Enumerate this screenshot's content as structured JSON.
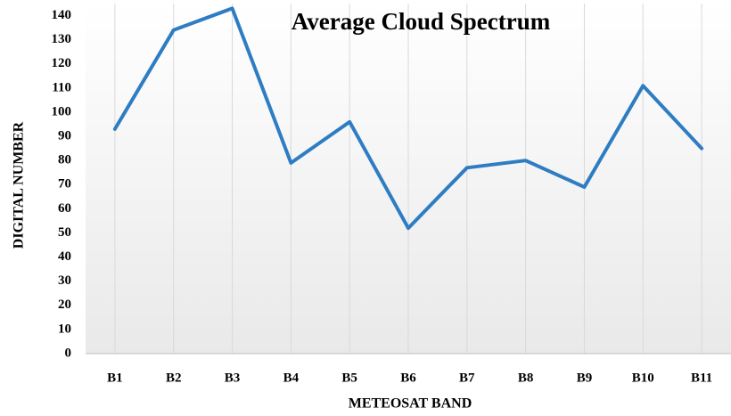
{
  "chart_data": {
    "type": "line",
    "title": "Average Cloud Spectrum",
    "x_label": "METEOSAT BAND",
    "y_label": "DIGITAL NUMBER",
    "categories": [
      "B1",
      "B2",
      "B3",
      "B4",
      "B5",
      "B6",
      "B7",
      "B8",
      "B9",
      "B10",
      "B11"
    ],
    "series": [
      {
        "name": "Average Cloud Spectrum",
        "color": "#2e7dc3",
        "values": [
          93,
          134,
          143,
          79,
          96,
          52,
          77,
          80,
          69,
          111,
          85
        ]
      }
    ],
    "ylim": [
      0,
      145
    ],
    "yticks": [
      0,
      10,
      20,
      30,
      40,
      50,
      60,
      70,
      80,
      90,
      100,
      110,
      120,
      130,
      140
    ],
    "grid": "x"
  }
}
